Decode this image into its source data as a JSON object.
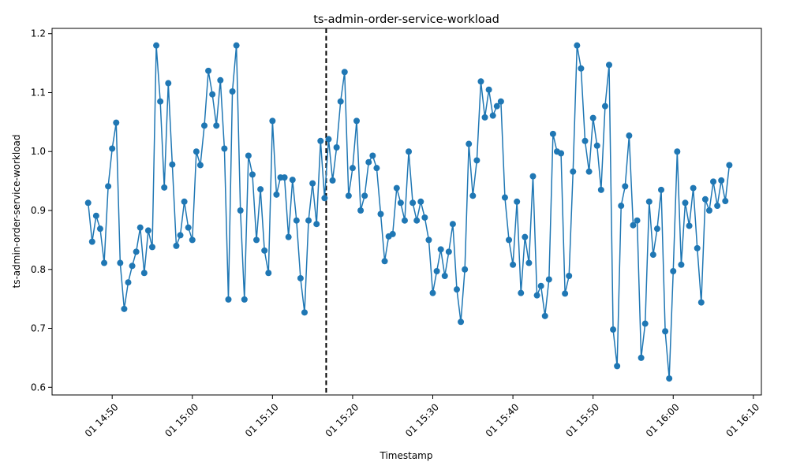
{
  "chart_data": {
    "type": "line",
    "title": "ts-admin-order-service-workload",
    "xlabel": "Timestamp",
    "ylabel": "ts-admin-order-service-workload",
    "xlim": [
      "01 14:42:30",
      "01 16:11:00"
    ],
    "ylim": [
      0.587,
      1.209
    ],
    "x_ticks": [
      {
        "value": "01 14:50:00",
        "label": "01 14:50"
      },
      {
        "value": "01 15:00:00",
        "label": "01 15:00"
      },
      {
        "value": "01 15:10:00",
        "label": "01 15:10"
      },
      {
        "value": "01 15:20:00",
        "label": "01 15:20"
      },
      {
        "value": "01 15:30:00",
        "label": "01 15:30"
      },
      {
        "value": "01 15:40:00",
        "label": "01 15:40"
      },
      {
        "value": "01 15:50:00",
        "label": "01 15:50"
      },
      {
        "value": "01 16:00:00",
        "label": "01 16:00"
      },
      {
        "value": "01 16:10:00",
        "label": "01 16:10"
      }
    ],
    "y_ticks": [
      0.6,
      0.7,
      0.8,
      0.9,
      1.0,
      1.1,
      1.2
    ],
    "y_tick_labels": [
      "0.6",
      "0.7",
      "0.8",
      "0.9",
      "1.0",
      "1.1",
      "1.2"
    ],
    "grid": false,
    "series": [
      {
        "color": "#1f77b4",
        "marker": "circle",
        "x_start": "01 14:47:00",
        "x_step_seconds": 30,
        "values": [
          0.913,
          0.847,
          0.891,
          0.869,
          0.811,
          0.941,
          1.005,
          1.049,
          0.811,
          0.733,
          0.778,
          0.806,
          0.83,
          0.871,
          0.794,
          0.866,
          0.838,
          1.18,
          1.085,
          0.939,
          1.116,
          0.978,
          0.84,
          0.858,
          0.915,
          0.871,
          0.85,
          1.0,
          0.977,
          1.044,
          1.137,
          1.097,
          1.044,
          1.121,
          1.005,
          0.749,
          1.102,
          1.18,
          0.9,
          0.749,
          0.993,
          0.961,
          0.85,
          0.936,
          0.832,
          0.794,
          1.052,
          0.927,
          0.956,
          0.956,
          0.855,
          0.952,
          0.883,
          0.785,
          0.727,
          0.883,
          0.946,
          0.877,
          1.018,
          0.921,
          1.021,
          0.951,
          1.007,
          1.085,
          1.135,
          0.925,
          0.972,
          1.052,
          0.9,
          0.925,
          0.982,
          0.993,
          0.972,
          0.894,
          0.814,
          0.856,
          0.86,
          0.938,
          0.913,
          0.883,
          1.0,
          0.913,
          0.883,
          0.915,
          0.888,
          0.85,
          0.76,
          0.797,
          0.834,
          0.789,
          0.83,
          0.877,
          0.766,
          0.711,
          0.8,
          1.013,
          0.925,
          0.985,
          1.119,
          1.058,
          1.105,
          1.061,
          1.077,
          1.085,
          0.922,
          0.85,
          0.808,
          0.915,
          0.76,
          0.855,
          0.811,
          0.958,
          0.756,
          0.772,
          0.721,
          0.783,
          1.03,
          1.0,
          0.997,
          0.759,
          0.789,
          0.966,
          1.18,
          1.141,
          1.018,
          0.966,
          1.057,
          1.01,
          0.935,
          1.077,
          1.147,
          0.698,
          0.636,
          0.908,
          0.941,
          1.027,
          0.875,
          0.883,
          0.65,
          0.708,
          0.915,
          0.825,
          0.869,
          0.935,
          0.695,
          0.615,
          0.797,
          1.0,
          0.808,
          0.913,
          0.874,
          0.938,
          0.836,
          0.744,
          0.919,
          0.9,
          0.949,
          0.908,
          0.951,
          0.916,
          0.977
        ]
      }
    ],
    "vertical_marker": {
      "x": "01 15:16:42",
      "color": "#000000",
      "style": "dashed"
    }
  }
}
